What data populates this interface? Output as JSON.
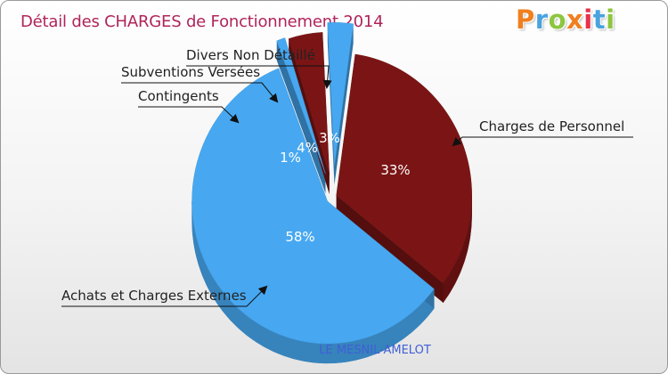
{
  "title": "Détail des CHARGES de Fonctionnement 2014",
  "logo": {
    "text": "Prox-iti",
    "letters": [
      "P",
      "r",
      "o",
      "x",
      "i",
      "t",
      "i"
    ],
    "colors": [
      "#f07f1f",
      "#4aa3df",
      "#8dc63f",
      "#f07f1f",
      "#e8314b",
      "#4aa3df",
      "#8dc63f"
    ]
  },
  "commune": "LE MESNIL-AMELOT",
  "chart_data": {
    "type": "pie",
    "title": "Détail des CHARGES de Fonctionnement 2014",
    "style": "3d-exploded",
    "slices": [
      {
        "label": "Charges de Personnel",
        "value": 33,
        "pct_label": "33%",
        "color": "#7b1515"
      },
      {
        "label": "Achats et Charges Externes",
        "value": 58,
        "pct_label": "58%",
        "color": "#47a8f1"
      },
      {
        "label": "Contingents",
        "value": 1,
        "pct_label": "1%",
        "color": "#47a8f1"
      },
      {
        "label": "Subventions Versées",
        "value": 4,
        "pct_label": "4%",
        "color": "#7b1515"
      },
      {
        "label": "Divers Non Détaillé",
        "value": 3,
        "pct_label": "3%",
        "color": "#47a8f1"
      }
    ]
  }
}
